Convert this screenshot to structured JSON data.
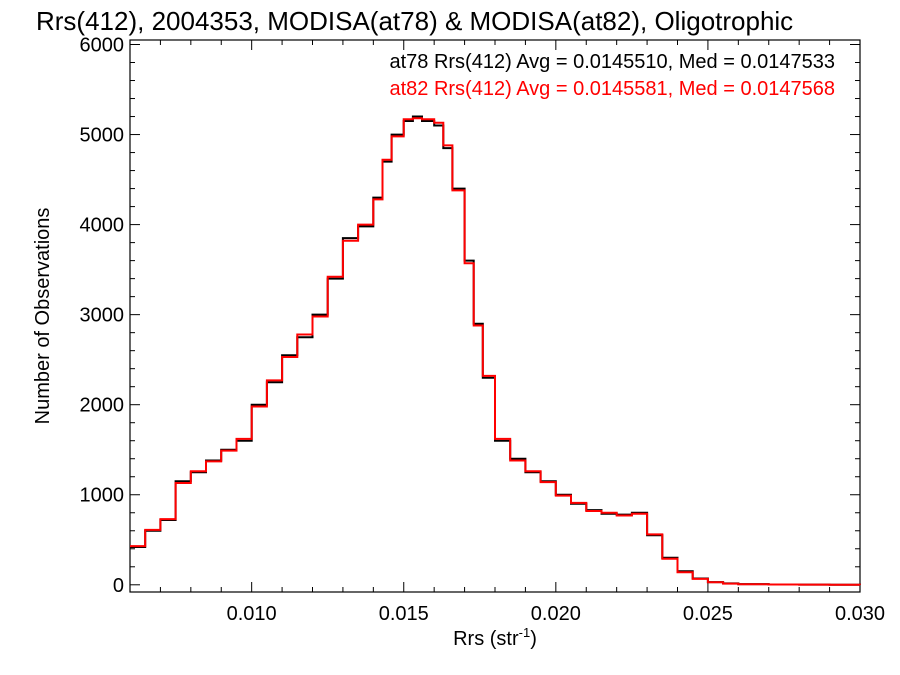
{
  "chart_data": {
    "type": "line",
    "title": "Rrs(412), 2004353, MODISA(at78) & MODISA(at82), Oligotrophic",
    "xlabel": "Rrs (str",
    "xlabel_sup": "-1",
    "xlabel_end": ")",
    "ylabel": "Number of Observations",
    "xlim": [
      0.006,
      0.03
    ],
    "ylim": [
      -80,
      6050
    ],
    "xticks": [
      0.01,
      0.015,
      0.02,
      0.025,
      0.03
    ],
    "xtick_labels": [
      "0.010",
      "0.015",
      "0.020",
      "0.025",
      "0.030"
    ],
    "yticks": [
      0,
      1000,
      2000,
      3000,
      4000,
      5000,
      6000
    ],
    "ytick_labels": [
      "0",
      "1000",
      "2000",
      "3000",
      "4000",
      "5000",
      "6000"
    ],
    "grid": false,
    "legend": "top-right",
    "annotations": [
      {
        "text": "at78 Rrs(412) Avg = 0.0145510, Med = 0.0147533",
        "color": "#000000"
      },
      {
        "text": "at82 Rrs(412) Avg = 0.0145581, Med = 0.0147568",
        "color": "#ff0000"
      }
    ],
    "series": [
      {
        "color": "#000000",
        "x": [
          0.006,
          0.0065,
          0.007,
          0.0075,
          0.008,
          0.0085,
          0.009,
          0.0095,
          0.01,
          0.0105,
          0.011,
          0.0115,
          0.012,
          0.0125,
          0.013,
          0.0135,
          0.014,
          0.0143,
          0.0146,
          0.015,
          0.0153,
          0.0156,
          0.016,
          0.0163,
          0.0166,
          0.017,
          0.0173,
          0.0176,
          0.018,
          0.0185,
          0.019,
          0.0195,
          0.02,
          0.0205,
          0.021,
          0.0215,
          0.022,
          0.0225,
          0.023,
          0.0235,
          0.024,
          0.0245,
          0.025,
          0.0255,
          0.026,
          0.027,
          0.028,
          0.029,
          0.03
        ],
        "y": [
          420,
          600,
          720,
          1150,
          1250,
          1380,
          1500,
          1600,
          2000,
          2250,
          2550,
          2750,
          3000,
          3400,
          3850,
          3980,
          4300,
          4700,
          5000,
          5150,
          5200,
          5150,
          5100,
          4850,
          4400,
          3600,
          2900,
          2300,
          1600,
          1400,
          1250,
          1150,
          1000,
          900,
          830,
          790,
          780,
          800,
          550,
          300,
          150,
          70,
          30,
          15,
          8,
          3,
          2,
          1,
          0
        ]
      },
      {
        "color": "#ff0000",
        "x": [
          0.006,
          0.0065,
          0.007,
          0.0075,
          0.008,
          0.0085,
          0.009,
          0.0095,
          0.01,
          0.0105,
          0.011,
          0.0115,
          0.012,
          0.0125,
          0.013,
          0.0135,
          0.014,
          0.0143,
          0.0146,
          0.015,
          0.0153,
          0.0156,
          0.016,
          0.0163,
          0.0166,
          0.017,
          0.0173,
          0.0176,
          0.018,
          0.0185,
          0.019,
          0.0195,
          0.02,
          0.0205,
          0.021,
          0.0215,
          0.022,
          0.0225,
          0.023,
          0.0235,
          0.024,
          0.0245,
          0.025,
          0.0255,
          0.026,
          0.027,
          0.028,
          0.029,
          0.03
        ],
        "y": [
          430,
          610,
          730,
          1130,
          1260,
          1370,
          1490,
          1620,
          1980,
          2270,
          2530,
          2780,
          2980,
          3420,
          3820,
          4000,
          4280,
          4720,
          4980,
          5170,
          5180,
          5170,
          5130,
          4880,
          4380,
          3570,
          2880,
          2320,
          1620,
          1380,
          1260,
          1140,
          990,
          910,
          820,
          800,
          770,
          790,
          560,
          290,
          140,
          65,
          28,
          13,
          7,
          3,
          2,
          1,
          0
        ]
      }
    ]
  }
}
